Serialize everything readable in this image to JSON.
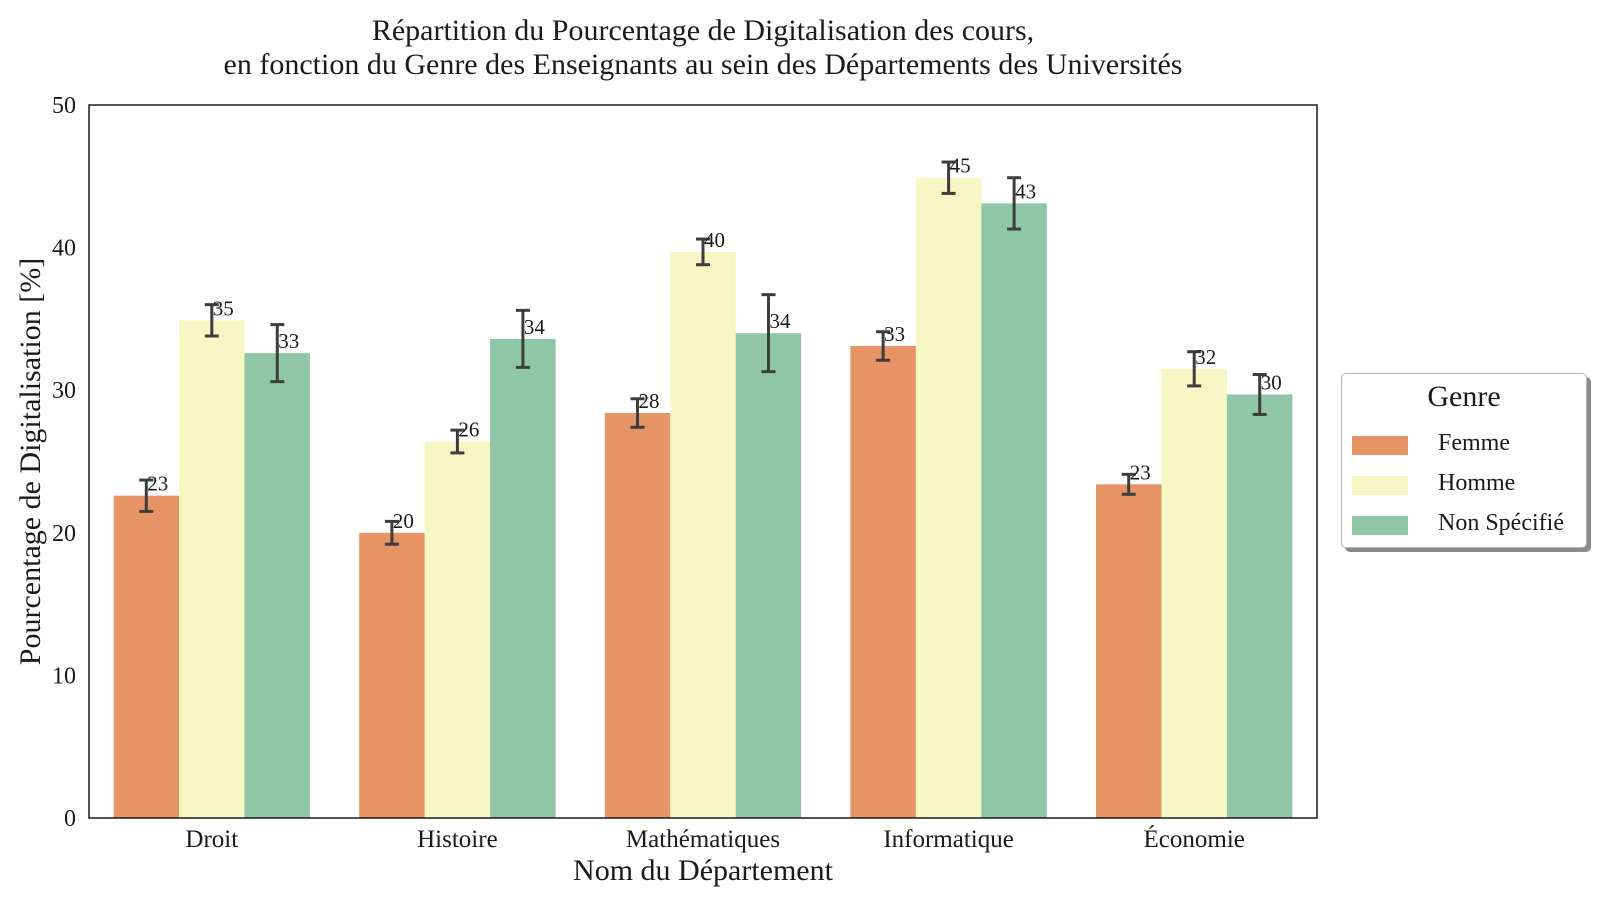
{
  "chart_data": {
    "type": "bar",
    "title_lines": [
      "Répartition du Pourcentage de Digitalisation des cours,",
      "en fonction du Genre des Enseignants au sein des Départements des Universités"
    ],
    "xlabel": "Nom du Département",
    "ylabel": "Pourcentage de Digitalisation [%]",
    "ylim": [
      0,
      50
    ],
    "yticks": [
      0,
      10,
      20,
      30,
      40,
      50
    ],
    "grid": false,
    "categories": [
      "Droit",
      "Histoire",
      "Mathématiques",
      "Informatique",
      "Économie"
    ],
    "series": [
      {
        "name": "Femme",
        "color": "#e69366",
        "values": [
          22.6,
          20.0,
          28.4,
          33.1,
          23.4
        ],
        "errors": [
          1.1,
          0.8,
          1.0,
          1.0,
          0.7
        ],
        "labels": [
          "23",
          "20",
          "28",
          "33",
          "23"
        ]
      },
      {
        "name": "Homme",
        "color": "#f7f7c6",
        "values": [
          34.9,
          26.4,
          39.7,
          44.9,
          31.5
        ],
        "errors": [
          1.1,
          0.8,
          0.9,
          1.1,
          1.2
        ],
        "labels": [
          "35",
          "26",
          "40",
          "45",
          "32"
        ]
      },
      {
        "name": "Non Spécifié",
        "color": "#8fc6a5",
        "values": [
          32.6,
          33.6,
          34.0,
          43.1,
          29.7
        ],
        "errors": [
          2.0,
          2.0,
          2.7,
          1.8,
          1.4
        ],
        "labels": [
          "33",
          "34",
          "34",
          "43",
          "30"
        ]
      }
    ],
    "legend": {
      "title": "Genre",
      "placement": "right"
    }
  }
}
